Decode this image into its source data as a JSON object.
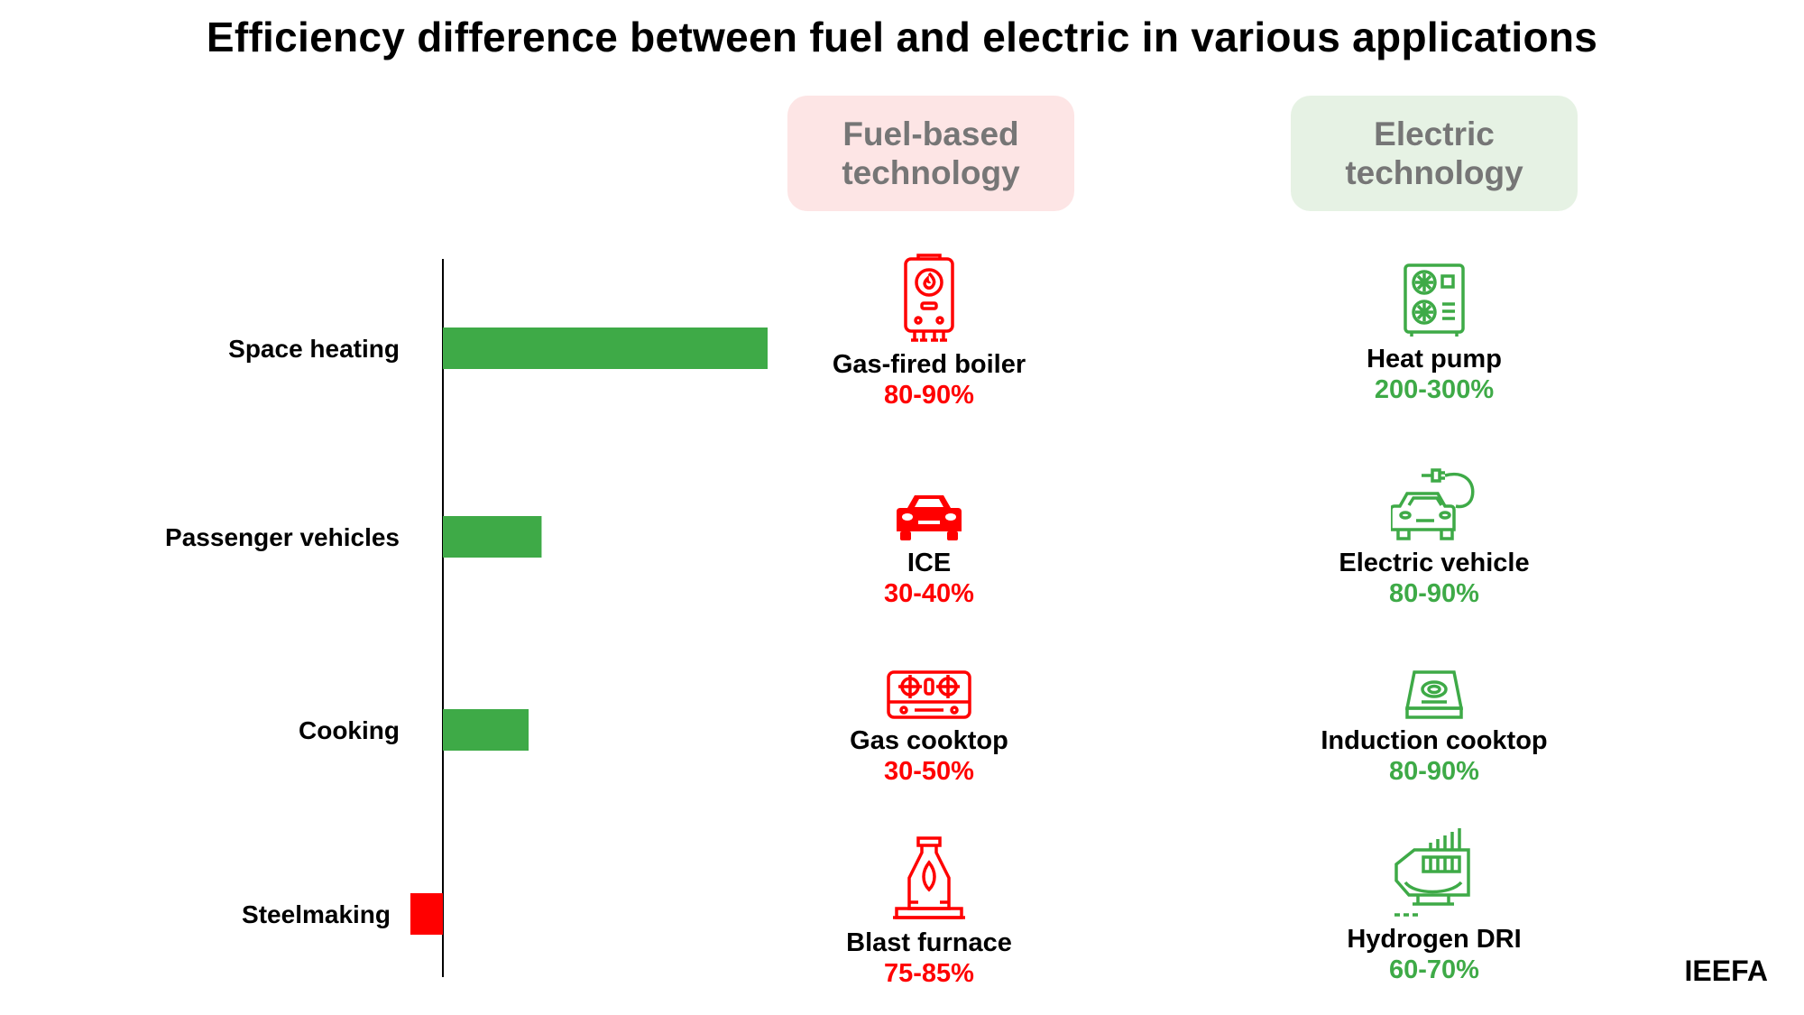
{
  "title": "Efficiency difference between fuel and electric in various applications",
  "columns": {
    "fuel": "Fuel-based technology",
    "electric": "Electric technology"
  },
  "colors": {
    "positive": "#3eaa47",
    "negative": "#ff0000",
    "fuel_text": "#ff0000",
    "electric_text": "#3eaa47",
    "fuel_header_bg": "#fde5e5",
    "electric_header_bg": "#e6f2e4"
  },
  "chart_data": {
    "type": "bar",
    "orientation": "horizontal",
    "categories": [
      "Space heating",
      "Passenger vehicles",
      "Cooking",
      "Steelmaking"
    ],
    "values": [
      2.5,
      0.76,
      0.66,
      -0.25
    ],
    "value_note": "relative bar lengths, axis unlabeled",
    "grid": false,
    "legend": "none"
  },
  "rows": [
    {
      "fuel": {
        "name": "Gas-fired boiler",
        "pct": "80-90%",
        "icon": "boiler-icon"
      },
      "electric": {
        "name": "Heat pump",
        "pct": "200-300%",
        "icon": "heat-pump-icon"
      }
    },
    {
      "fuel": {
        "name": "ICE",
        "pct": "30-40%",
        "icon": "car-icon"
      },
      "electric": {
        "name": "Electric vehicle",
        "pct": "80-90%",
        "icon": "electric-car-icon"
      }
    },
    {
      "fuel": {
        "name": "Gas cooktop",
        "pct": "30-50%",
        "icon": "gas-stove-icon"
      },
      "electric": {
        "name": "Induction cooktop",
        "pct": "80-90%",
        "icon": "induction-cooktop-icon"
      }
    },
    {
      "fuel": {
        "name": "Blast furnace",
        "pct": "75-85%",
        "icon": "blast-furnace-icon"
      },
      "electric": {
        "name": "Hydrogen DRI",
        "pct": "60-70%",
        "icon": "factory-icon"
      }
    }
  ],
  "source": "IEEFA"
}
